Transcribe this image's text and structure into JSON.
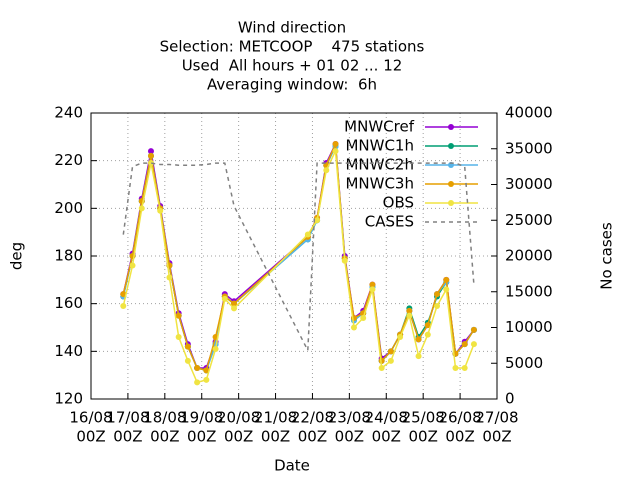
{
  "chart_data": {
    "type": "line",
    "title": [
      "Wind direction",
      "Selection: METCOOP    475 stations",
      "Used  All hours + 01 02 ... 12",
      "Averaging window:  6h"
    ],
    "xlabel": "Date",
    "ylabel": "deg",
    "y2label": "No cases",
    "x": [
      "16/08 21Z",
      "17/08 03Z",
      "17/08 09Z",
      "17/08 15Z",
      "17/08 21Z",
      "18/08 03Z",
      "18/08 09Z",
      "18/08 15Z",
      "18/08 21Z",
      "19/08 03Z",
      "19/08 09Z",
      "19/08 15Z",
      "19/08 21Z",
      "21/08 21Z",
      "22/08 03Z",
      "22/08 09Z",
      "22/08 15Z",
      "22/08 21Z",
      "23/08 03Z",
      "23/08 09Z",
      "23/08 15Z",
      "23/08 21Z",
      "24/08 03Z",
      "24/08 09Z",
      "24/08 15Z",
      "24/08 21Z",
      "25/08 03Z",
      "25/08 09Z",
      "25/08 15Z",
      "25/08 21Z",
      "26/08 03Z",
      "26/08 09Z"
    ],
    "xlim": [
      "16/08 00Z",
      "27/08 00Z"
    ],
    "xticks": [
      [
        "16/08",
        "00Z"
      ],
      [
        "17/08",
        "00Z"
      ],
      [
        "18/08",
        "00Z"
      ],
      [
        "19/08",
        "00Z"
      ],
      [
        "20/08",
        "00Z"
      ],
      [
        "21/08",
        "00Z"
      ],
      [
        "22/08",
        "00Z"
      ],
      [
        "23/08",
        "00Z"
      ],
      [
        "24/08",
        "00Z"
      ],
      [
        "25/08",
        "00Z"
      ],
      [
        "26/08",
        "00Z"
      ],
      [
        "27/08",
        "00Z"
      ]
    ],
    "ylim": [
      120,
      240
    ],
    "yticks": [
      120,
      140,
      160,
      180,
      200,
      220,
      240
    ],
    "y2lim": [
      0,
      40000
    ],
    "y2ticks": [
      0,
      5000,
      10000,
      15000,
      20000,
      25000,
      30000,
      35000,
      40000
    ],
    "grid": true,
    "legend": "top-right",
    "series": [
      {
        "name": "MNWCref",
        "color": "#9400d3",
        "values": [
          164,
          181,
          204,
          224,
          201,
          177,
          156,
          143,
          133,
          133,
          144,
          164,
          161,
          188,
          196,
          219,
          227,
          180,
          154,
          157,
          168,
          137,
          140,
          147,
          157,
          145,
          151,
          164,
          170,
          139,
          144,
          149
        ]
      },
      {
        "name": "MNWC1h",
        "color": "#009e73",
        "values": [
          163,
          180,
          203,
          222,
          200,
          176,
          155,
          142,
          133,
          132,
          143,
          163,
          160,
          187,
          195,
          218,
          226,
          179,
          153,
          156,
          167,
          136,
          140,
          147,
          158,
          146,
          152,
          163,
          169,
          139,
          143,
          149
        ]
      },
      {
        "name": "MNWC2h",
        "color": "#56b4e9",
        "values": [
          163,
          180,
          203,
          222,
          200,
          176,
          155,
          142,
          133,
          132,
          143,
          163,
          160,
          187,
          195,
          218,
          226,
          179,
          153,
          156,
          167,
          136,
          140,
          147,
          157,
          145,
          151,
          164,
          169,
          139,
          143,
          149
        ]
      },
      {
        "name": "MNWC3h",
        "color": "#e69f00",
        "values": [
          164,
          180,
          203,
          222,
          200,
          176,
          155,
          142,
          133,
          132,
          146,
          163,
          160,
          188,
          196,
          218,
          227,
          179,
          154,
          156,
          168,
          136,
          140,
          147,
          157,
          145,
          151,
          164,
          170,
          139,
          143,
          149
        ]
      },
      {
        "name": "OBS",
        "color": "#f0e442",
        "values": [
          159,
          176,
          200,
          219,
          199,
          171,
          146,
          136,
          127,
          128,
          141,
          162,
          158,
          189,
          195,
          216,
          224,
          178,
          150,
          154,
          166,
          133,
          136,
          146,
          155,
          138,
          147,
          159,
          166,
          133,
          133,
          143
        ]
      },
      {
        "name": "CASES",
        "color": "#808080",
        "axis": "y2",
        "dashed": true,
        "values": [
          23000,
          32500,
          33000,
          33000,
          32800,
          32800,
          32700,
          32700,
          32700,
          32800,
          33000,
          33000,
          27000,
          6800,
          33000,
          33000,
          33000,
          33000,
          33000,
          33000,
          33000,
          33000,
          33000,
          33000,
          33000,
          33000,
          33000,
          33000,
          33000,
          33000,
          32500,
          16000
        ]
      }
    ]
  }
}
